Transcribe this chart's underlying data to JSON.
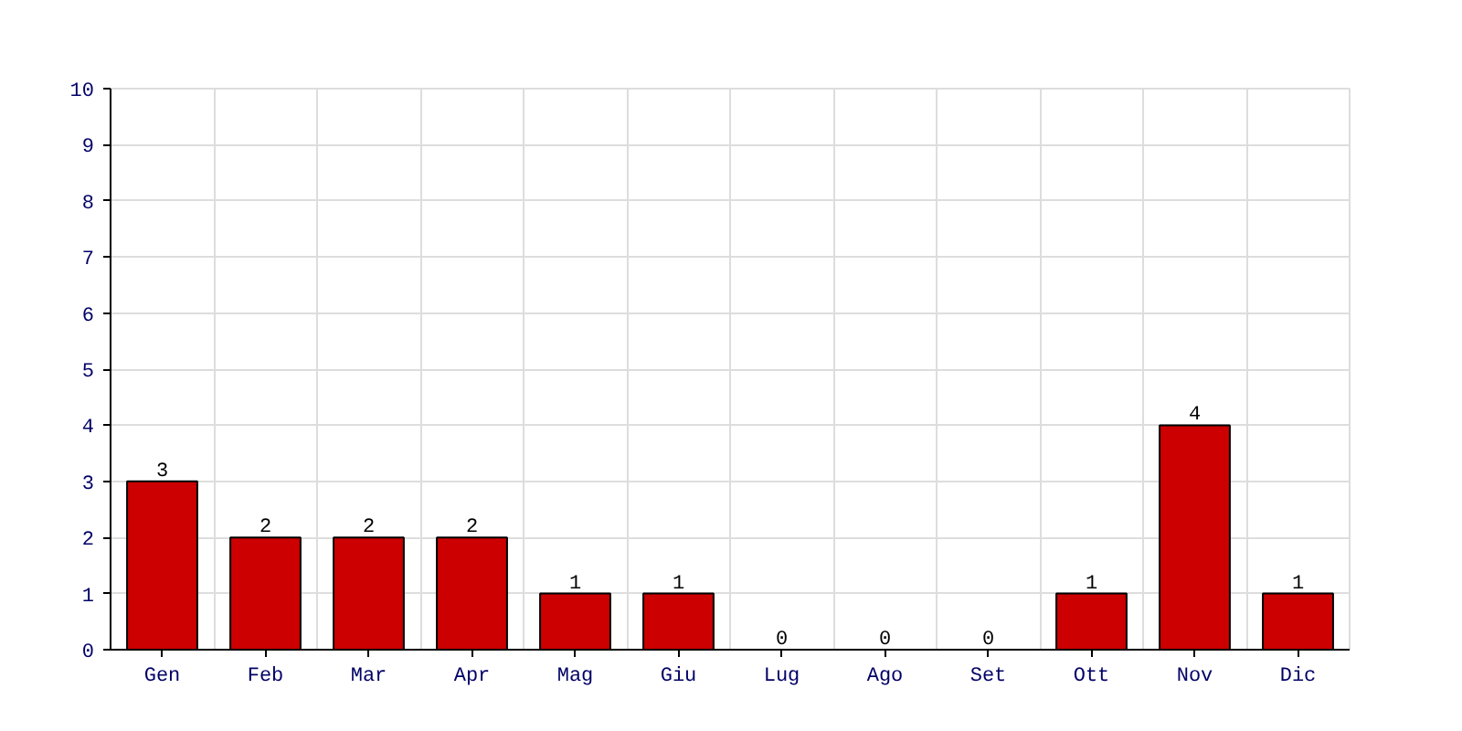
{
  "chart_data": {
    "type": "bar",
    "categories": [
      "Gen",
      "Feb",
      "Mar",
      "Apr",
      "Mag",
      "Giu",
      "Lug",
      "Ago",
      "Set",
      "Ott",
      "Nov",
      "Dic"
    ],
    "values": [
      3,
      2,
      2,
      2,
      1,
      1,
      0,
      0,
      0,
      1,
      4,
      1
    ],
    "color": "#cc0000",
    "ylim": [
      0,
      10
    ],
    "yticks": [
      0,
      1,
      2,
      3,
      4,
      5,
      6,
      7,
      8,
      9,
      10
    ],
    "grid": true,
    "data_labels": true
  }
}
